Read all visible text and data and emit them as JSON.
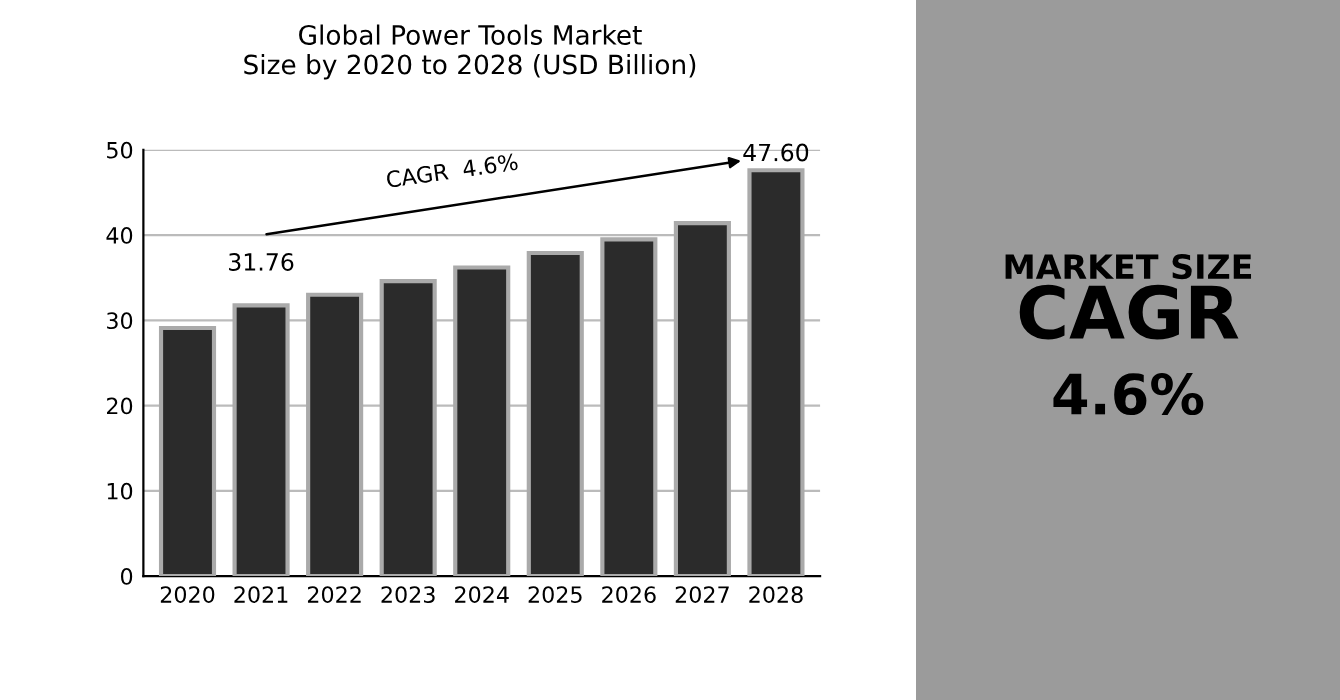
{
  "chart_data": {
    "type": "bar",
    "title": "Global Power Tools Market\nSize by 2020 to 2028 (USD Billion)",
    "categories": [
      "2020",
      "2021",
      "2022",
      "2023",
      "2024",
      "2025",
      "2026",
      "2027",
      "2028"
    ],
    "values": [
      29.1,
      31.76,
      33.0,
      34.6,
      36.2,
      37.9,
      39.5,
      41.4,
      47.6
    ],
    "value_labels": [
      null,
      "31.76",
      null,
      null,
      null,
      null,
      null,
      null,
      "47.60"
    ],
    "color": "#2b2b2b",
    "ylim": [
      0,
      50
    ],
    "yticks": [
      0,
      10,
      20,
      30,
      40,
      50
    ],
    "grid": "y",
    "annotations": [
      "CAGR  4.6%",
      "MARKET SIZE",
      "CAGR",
      "4.6%"
    ]
  }
}
